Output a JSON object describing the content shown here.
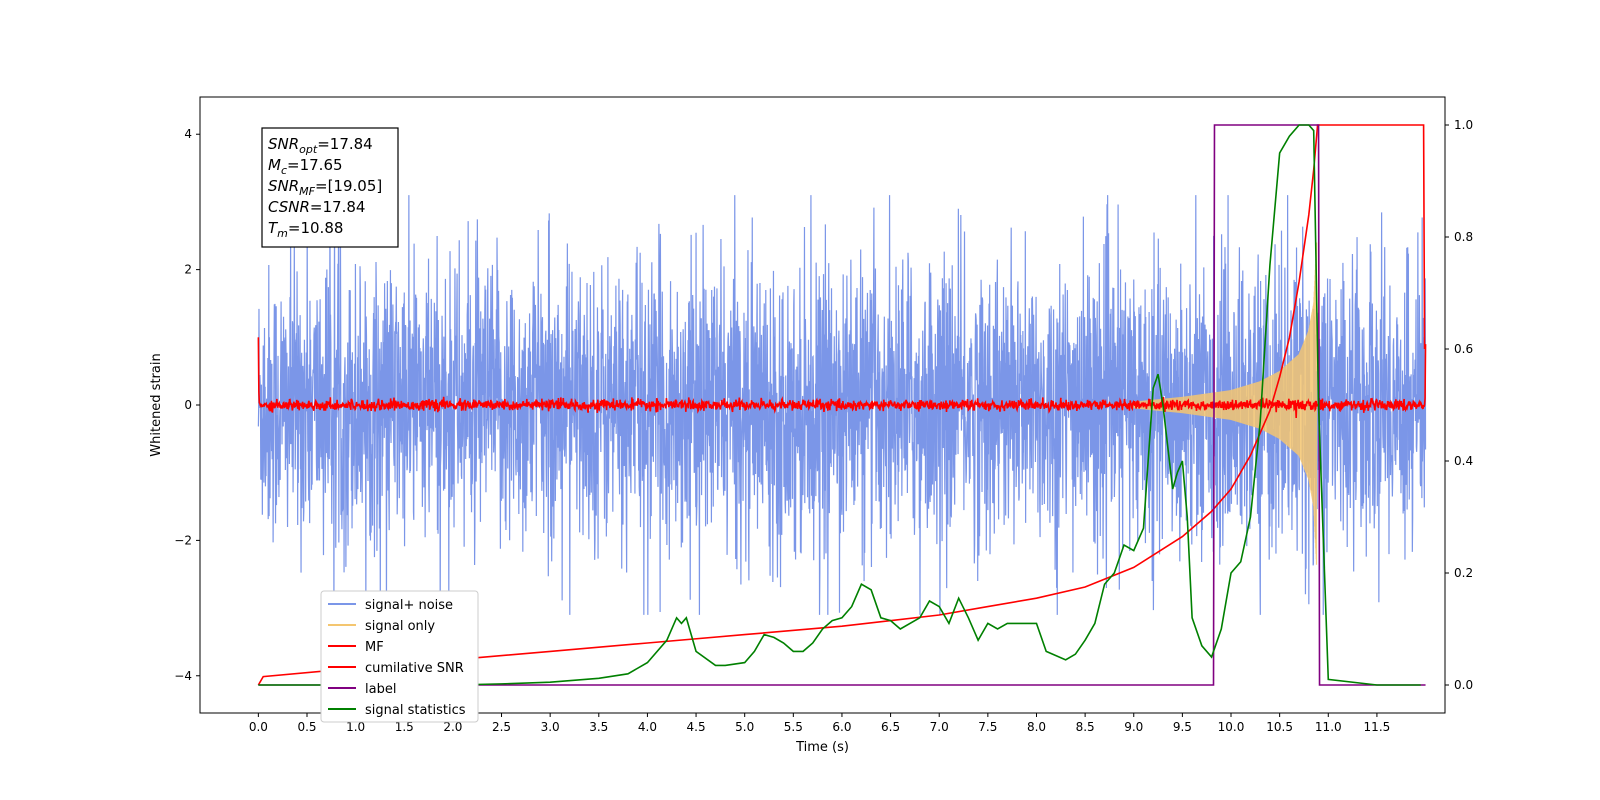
{
  "chart_data": {
    "type": "line",
    "xlabel": "Time (s)",
    "ylabel": "Whitened strain",
    "xlim": [
      -0.6,
      12.2
    ],
    "ylim": [
      -4.55,
      4.55
    ],
    "ylim_right": [
      -0.05,
      1.05
    ],
    "x_ticks": [
      "0.0",
      "0.5",
      "1.0",
      "1.5",
      "2.0",
      "2.5",
      "3.0",
      "3.5",
      "4.0",
      "4.5",
      "5.0",
      "5.5",
      "6.0",
      "6.5",
      "7.0",
      "7.5",
      "8.0",
      "8.5",
      "9.0",
      "9.5",
      "10.0",
      "10.5",
      "11.0",
      "11.5"
    ],
    "y_ticks_left": [
      "4",
      "2",
      "0",
      "−2",
      "−4"
    ],
    "y_ticks_right": [
      "1.0",
      "0.8",
      "0.6",
      "0.4",
      "0.2",
      "0.0"
    ],
    "grid": false,
    "legend_position": "lower-left",
    "annotation": {
      "lines": [
        {
          "name": "SNR",
          "sub": "opt",
          "value": "=17.84"
        },
        {
          "name": "M",
          "sub": "c",
          "value": "=17.65"
        },
        {
          "name": "SNR",
          "sub": "MF",
          "value": "=[19.05]"
        },
        {
          "name": "CSNR",
          "sub": "",
          "value": "=17.84"
        },
        {
          "name": "T",
          "sub": "m",
          "value": "=10.88"
        }
      ]
    },
    "series": [
      {
        "name": "signal+ noise",
        "color": "#7b96e8",
        "axis": "left",
        "style": "gaussian noise band, amplitude ~1.2, spikes to ~3",
        "envelope_x": [
          0,
          2,
          4,
          6,
          8,
          9.5,
          10.5,
          11.5,
          12
        ],
        "envelope_y": [
          1.2,
          1.2,
          1.2,
          1.2,
          1.2,
          1.2,
          1.3,
          1.2,
          1.2
        ]
      },
      {
        "name": "signal only",
        "color": "#f4c670",
        "axis": "left",
        "style": "chirp growing toward merger",
        "x": [
          9.0,
          9.5,
          10.0,
          10.3,
          10.5,
          10.7,
          10.8,
          10.85,
          10.88
        ],
        "amplitude": [
          0.05,
          0.12,
          0.22,
          0.35,
          0.5,
          0.75,
          1.1,
          1.5,
          2.4
        ]
      },
      {
        "name": "MF",
        "color": "#ff0000",
        "axis": "left",
        "style": "noisy trace near zero, |y| < 0.15",
        "level": 0.0
      },
      {
        "name": "cumilative SNR",
        "color": "#ff0000",
        "axis": "right",
        "x": [
          0.0,
          0.05,
          1,
          2,
          3,
          4,
          5,
          6,
          7,
          7.5,
          8,
          8.5,
          9,
          9.5,
          9.8,
          10,
          10.2,
          10.4,
          10.5,
          10.6,
          10.7,
          10.8,
          10.85,
          10.88,
          10.89,
          11.98,
          11.99
        ],
        "values": [
          0.0,
          0.015,
          0.03,
          0.045,
          0.06,
          0.075,
          0.09,
          0.105,
          0.125,
          0.14,
          0.155,
          0.175,
          0.21,
          0.265,
          0.31,
          0.35,
          0.41,
          0.49,
          0.55,
          0.62,
          0.72,
          0.84,
          0.92,
          0.98,
          1.0,
          1.0,
          0.6
        ]
      },
      {
        "name": "label",
        "color": "#800080",
        "axis": "right",
        "x": [
          0.0,
          9.82,
          9.83,
          10.9,
          10.91,
          12.0
        ],
        "values": [
          0,
          0,
          1,
          1,
          0,
          0
        ]
      },
      {
        "name": "signal statistics",
        "color": "#008000",
        "axis": "right",
        "x": [
          0.0,
          0.5,
          1.0,
          1.5,
          2.0,
          2.5,
          3.0,
          3.5,
          3.8,
          4.0,
          4.2,
          4.3,
          4.35,
          4.4,
          4.5,
          4.7,
          4.8,
          5.0,
          5.1,
          5.2,
          5.3,
          5.4,
          5.5,
          5.6,
          5.7,
          5.8,
          5.9,
          6.0,
          6.1,
          6.2,
          6.3,
          6.4,
          6.5,
          6.6,
          6.8,
          6.9,
          7.0,
          7.1,
          7.2,
          7.3,
          7.4,
          7.5,
          7.6,
          7.7,
          7.9,
          8.0,
          8.1,
          8.3,
          8.4,
          8.5,
          8.6,
          8.7,
          8.8,
          8.9,
          9.0,
          9.1,
          9.2,
          9.25,
          9.3,
          9.4,
          9.45,
          9.5,
          9.55,
          9.6,
          9.7,
          9.8,
          9.9,
          10.0,
          10.1,
          10.2,
          10.3,
          10.4,
          10.5,
          10.6,
          10.7,
          10.8,
          10.85,
          10.9,
          11.0,
          11.5,
          11.95
        ],
        "values": [
          0.0,
          0.0,
          0.0,
          0.0,
          0.0,
          0.002,
          0.005,
          0.012,
          0.02,
          0.04,
          0.08,
          0.12,
          0.11,
          0.12,
          0.06,
          0.035,
          0.035,
          0.04,
          0.06,
          0.09,
          0.085,
          0.075,
          0.06,
          0.06,
          0.075,
          0.1,
          0.115,
          0.12,
          0.14,
          0.18,
          0.17,
          0.12,
          0.115,
          0.1,
          0.12,
          0.15,
          0.14,
          0.11,
          0.155,
          0.12,
          0.08,
          0.11,
          0.1,
          0.11,
          0.11,
          0.11,
          0.06,
          0.045,
          0.055,
          0.08,
          0.11,
          0.18,
          0.2,
          0.25,
          0.24,
          0.28,
          0.53,
          0.555,
          0.5,
          0.35,
          0.38,
          0.4,
          0.3,
          0.12,
          0.07,
          0.05,
          0.1,
          0.2,
          0.22,
          0.3,
          0.47,
          0.75,
          0.95,
          0.98,
          1.0,
          1.0,
          0.99,
          0.5,
          0.01,
          0.0,
          0.0
        ]
      }
    ]
  }
}
